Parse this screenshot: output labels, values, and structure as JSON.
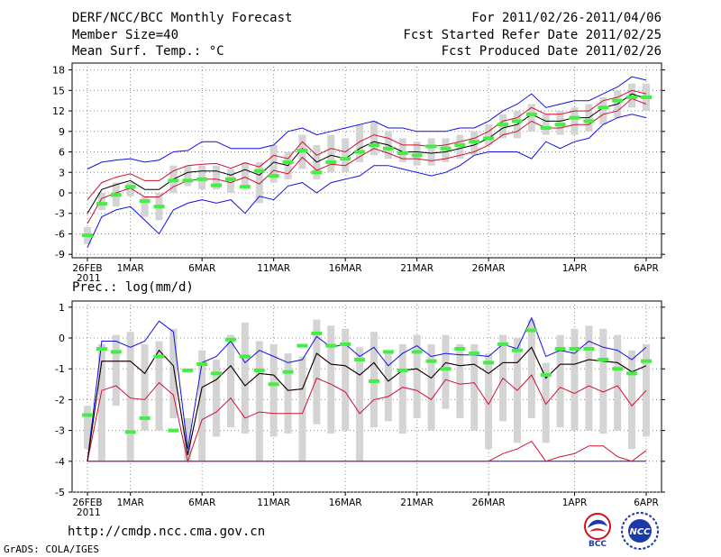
{
  "header": {
    "title": "DERF/NCC/BCC Monthly Forecast",
    "member_size": "Member Size=40",
    "period": "For 2011/02/26-2011/04/06",
    "start_date": "Fcst Started Refer Date 2011/02/25",
    "produced_date": "Fcst Produced Date 2011/02/26"
  },
  "footer": {
    "url": "http://cmdp.ncc.cma.gov.cn",
    "credit": "GrADS: COLA/IGES",
    "logos": [
      "BCC",
      "NCC"
    ]
  },
  "colors": {
    "envelope": "#1010e0",
    "spread": "#d01030",
    "mean": "#000000",
    "box": "#d4d4d4",
    "median": "#44ee44",
    "grid": "#888888"
  },
  "chart_data": [
    {
      "type": "box-ensemble",
      "title": "Mean Surf. Temp.: °C",
      "ylim": [
        -9.5,
        19
      ],
      "yticks": [
        -9,
        -6,
        -3,
        0,
        3,
        6,
        9,
        12,
        15,
        18
      ],
      "xticks": [
        "26FEB",
        "1MAR",
        "6MAR",
        "11MAR",
        "16MAR",
        "21MAR",
        "26MAR",
        "1APR",
        "6APR"
      ],
      "xtick_days": [
        0,
        3,
        8,
        13,
        18,
        23,
        28,
        34,
        39
      ],
      "year_label": "2011",
      "ensemble_max": [
        3.5,
        4.5,
        4.8,
        5,
        4.5,
        4.8,
        6,
        6.2,
        7.5,
        7.5,
        6.5,
        6.5,
        6.5,
        7,
        9,
        9.5,
        8.5,
        9,
        9.5,
        10,
        10.5,
        9.5,
        9.5,
        9,
        9,
        9,
        9.5,
        9.5,
        10.5,
        12,
        13,
        14.5,
        12.5,
        13,
        13.5,
        13.5,
        14.5,
        15.5,
        17,
        16.5
      ],
      "plus_sd": [
        -1,
        1.5,
        2.3,
        2.8,
        1.8,
        1.8,
        3.2,
        4,
        4.2,
        4.3,
        3.6,
        4.4,
        3.8,
        5.5,
        5,
        7.5,
        5.5,
        6.5,
        6,
        7.5,
        8.5,
        8,
        7,
        7,
        6.8,
        7,
        7.5,
        8,
        9,
        10.5,
        11,
        12.5,
        11.5,
        11.5,
        12,
        12,
        13.5,
        14,
        15,
        14.5
      ],
      "mean": [
        -3,
        0.5,
        1.2,
        1.8,
        0.5,
        0.5,
        2,
        3,
        3.2,
        3.2,
        2.6,
        3.4,
        2.6,
        4.5,
        4,
        6.5,
        4.5,
        5.5,
        5,
        6.5,
        7.5,
        7,
        6,
        6,
        5.8,
        6,
        6.5,
        7,
        8,
        9.5,
        10,
        11.5,
        10.5,
        10.5,
        11,
        11,
        12.5,
        13,
        14.5,
        13.8
      ],
      "minus_sd": [
        -4.5,
        -0.8,
        0,
        0.7,
        -0.6,
        -0.6,
        0.9,
        1.8,
        2,
        2,
        1.5,
        2.3,
        1.3,
        3.3,
        2.8,
        5.2,
        3.3,
        4.2,
        4,
        5.3,
        6.5,
        5.8,
        5,
        5,
        4.7,
        5,
        5.5,
        6,
        7,
        8.5,
        9,
        10.5,
        9.5,
        9.5,
        10,
        10,
        11.5,
        12,
        13.8,
        13
      ],
      "ensemble_min": [
        -8,
        -3.5,
        -2.5,
        -2,
        -4,
        -6,
        -2.5,
        -1.5,
        -1,
        -1.5,
        -1,
        -3,
        -0.5,
        -1,
        1,
        1.5,
        0,
        1.5,
        2,
        2.5,
        4,
        4,
        3.5,
        3,
        2.5,
        3,
        4,
        5.5,
        6,
        6,
        6,
        5,
        7.5,
        6.5,
        7.5,
        8,
        10,
        11,
        11.5,
        11
      ],
      "box_hi": [
        -5,
        0,
        1.5,
        1.5,
        -0.5,
        0,
        4,
        4,
        4,
        4,
        3.5,
        4.5,
        4.5,
        7,
        6,
        8.5,
        7,
        8.5,
        8,
        10,
        10.5,
        9,
        8,
        7.5,
        8,
        8,
        8.5,
        9,
        10,
        11.5,
        12,
        13,
        11.5,
        12,
        12.5,
        13,
        14,
        15,
        16,
        16
      ],
      "box_lo": [
        -7.5,
        -2.5,
        -2,
        -0.5,
        -3.5,
        -4,
        0,
        1,
        0.5,
        0.5,
        0,
        1,
        -1.5,
        1.5,
        2,
        3.5,
        2,
        3,
        3,
        4.5,
        5.5,
        5,
        4.5,
        4,
        4,
        4.5,
        5,
        5.5,
        7,
        8,
        8,
        9,
        8.5,
        8.5,
        8.5,
        9,
        10,
        11,
        12.5,
        12
      ],
      "median": [
        -6.2,
        -1.6,
        -0.3,
        0.9,
        -1.2,
        -2,
        1.8,
        1.8,
        2,
        1.1,
        2,
        0.9,
        3.2,
        2.5,
        4.5,
        6.2,
        3,
        4.5,
        5,
        6,
        7,
        6.5,
        5.8,
        5.5,
        6.8,
        6.5,
        7,
        7.5,
        8,
        10,
        10.5,
        11.5,
        9.5,
        10,
        11,
        10.5,
        12.5,
        13.5,
        14,
        14
      ]
    },
    {
      "type": "box-ensemble",
      "title": "Prec.: log(mm/d)",
      "ylim": [
        -5,
        1.2
      ],
      "yticks": [
        -5,
        -4,
        -3,
        -2,
        -1,
        0,
        1
      ],
      "xticks": [
        "26FEB",
        "1MAR",
        "6MAR",
        "11MAR",
        "16MAR",
        "21MAR",
        "26MAR",
        "1APR",
        "6APR"
      ],
      "xtick_days": [
        0,
        3,
        8,
        13,
        18,
        23,
        28,
        34,
        39
      ],
      "year_label": "2011",
      "ensemble_max": [
        -4,
        -0.1,
        -0.1,
        -0.3,
        -0.1,
        0.55,
        0.2,
        -3.6,
        -0.8,
        -0.6,
        -0.1,
        -0.8,
        -0.4,
        -0.6,
        -0.8,
        -0.7,
        0.05,
        -0.3,
        -0.2,
        -0.6,
        -0.3,
        -0.9,
        -0.5,
        -0.25,
        -0.6,
        -0.5,
        -0.55,
        -0.55,
        -0.6,
        -0.2,
        -0.35,
        0.65,
        -0.6,
        -0.4,
        -0.5,
        -0.1,
        -0.3,
        -0.4,
        -0.7,
        -0.3
      ],
      "plus_sd": [
        -4,
        -0.75,
        -0.75,
        -0.75,
        -1.15,
        -0.4,
        -0.9,
        -3.8,
        -1.6,
        -1.35,
        -0.9,
        -1.55,
        -1.15,
        -1.2,
        -1.7,
        -1.65,
        -0.5,
        -0.85,
        -0.9,
        -1.2,
        -0.8,
        -1.4,
        -1.05,
        -1.0,
        -1.3,
        -0.8,
        -0.9,
        -0.85,
        -1.15,
        -0.8,
        -0.8,
        -0.3,
        -1.3,
        -0.85,
        -0.85,
        -0.7,
        -0.75,
        -0.8,
        -1.1,
        -0.9
      ],
      "mean": [
        -4,
        -0.75,
        -0.75,
        -0.75,
        -1.15,
        -0.4,
        -0.9,
        -3.8,
        -1.6,
        -1.35,
        -0.9,
        -1.55,
        -1.15,
        -1.2,
        -1.7,
        -1.65,
        -0.5,
        -0.85,
        -0.9,
        -1.2,
        -0.8,
        -1.4,
        -1.05,
        -1.0,
        -1.3,
        -0.8,
        -0.9,
        -0.85,
        -1.15,
        -0.8,
        -0.8,
        -0.3,
        -1.3,
        -0.85,
        -0.85,
        -0.7,
        -0.75,
        -0.8,
        -1.1,
        -0.9
      ],
      "minus_sd": [
        -4,
        -1.7,
        -1.55,
        -1.95,
        -2.0,
        -1.45,
        -1.85,
        -4.0,
        -2.65,
        -2.4,
        -1.95,
        -2.6,
        -2.4,
        -2.45,
        -2.45,
        -2.45,
        -1.3,
        -1.5,
        -1.75,
        -2.45,
        -2.0,
        -1.9,
        -1.6,
        -1.7,
        -2.0,
        -1.35,
        -1.5,
        -1.45,
        -2.15,
        -1.3,
        -1.7,
        -1.2,
        -2.15,
        -1.6,
        -1.8,
        -1.55,
        -1.75,
        -1.55,
        -2.2,
        -1.7
      ],
      "ensemble_min": [
        -4,
        -4,
        -4,
        -4,
        -4,
        -4,
        -4,
        -4,
        -4,
        -4,
        -4,
        -4,
        -4,
        -4,
        -4,
        -4,
        -4,
        -4,
        -4,
        -4,
        -4,
        -4,
        -4,
        -4,
        -4,
        -4,
        -4,
        -4,
        -4,
        -4,
        -4,
        -4,
        -4,
        -4,
        -4,
        -4,
        -4,
        -4,
        -4,
        -4
      ],
      "lower_red": [
        -4,
        -4,
        -4,
        -4,
        -4,
        -4,
        -4,
        -4,
        -4,
        -4,
        -4,
        -4,
        -4,
        -4,
        -4,
        -4,
        -4,
        -4,
        -4,
        -4,
        -4,
        -4,
        -4,
        -4,
        -4,
        -4,
        -4,
        -4,
        -4,
        -3.75,
        -3.6,
        -3.35,
        -4,
        -3.85,
        -3.75,
        -3.5,
        -3.5,
        -3.85,
        -4,
        -3.65
      ],
      "box_hi": [
        -2.2,
        -0.2,
        0.1,
        0.2,
        -0.2,
        -0.1,
        0.3,
        -2.6,
        -0.4,
        -0.7,
        0.1,
        0.5,
        -0.1,
        -0.2,
        -0.5,
        -0.6,
        0.6,
        0.4,
        0.3,
        -0.3,
        0.2,
        -0.5,
        -0.2,
        0.1,
        -0.2,
        0.1,
        -0.2,
        -0.2,
        -0.5,
        0.1,
        0.0,
        0.6,
        -0.8,
        0.1,
        0.3,
        0.4,
        0.3,
        0.1,
        -0.4,
        -0.2
      ],
      "box_lo": [
        -3.6,
        -4.0,
        -2.2,
        -4.0,
        -3.0,
        -3.0,
        -2.6,
        -4.0,
        -4.0,
        -3.2,
        -2.9,
        -3.1,
        -4.0,
        -3.2,
        -3.1,
        -4.0,
        -2.8,
        -3.1,
        -3.0,
        -4.0,
        -2.9,
        -2.7,
        -3.1,
        -2.6,
        -3.0,
        -2.3,
        -2.6,
        -3.0,
        -3.6,
        -2.7,
        -3.4,
        -2.6,
        -3.4,
        -2.9,
        -3.0,
        -3.0,
        -3.1,
        -3.0,
        -3.6,
        -3.2
      ],
      "median": [
        -2.5,
        -0.35,
        -0.45,
        -3.05,
        -2.6,
        -0.6,
        -3.0,
        -1.05,
        -0.85,
        -1.15,
        -0.05,
        -0.6,
        -1.05,
        -1.5,
        -1.1,
        -0.25,
        0.15,
        -0.25,
        -0.2,
        -0.7,
        -1.4,
        -0.45,
        -1.05,
        -0.45,
        -0.75,
        -1.0,
        -0.35,
        -0.5,
        -0.8,
        -0.2,
        -0.4,
        0.25,
        -1.2,
        -0.35,
        -0.35,
        -0.35,
        -0.7,
        -1.0,
        -1.15,
        -0.75
      ]
    }
  ]
}
